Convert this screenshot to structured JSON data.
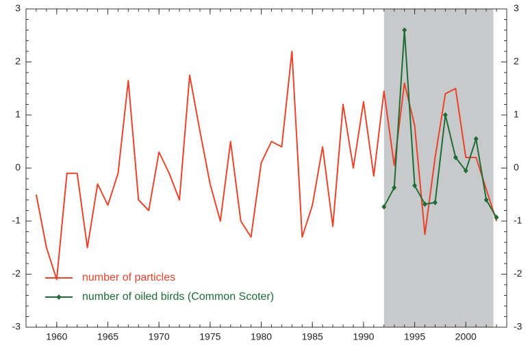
{
  "chart_data": {
    "type": "line",
    "xlim": [
      1957,
      2004
    ],
    "xticks": [
      1960,
      1965,
      1970,
      1975,
      1980,
      1985,
      1990,
      1995,
      2000
    ],
    "ylim": [
      -3,
      3
    ],
    "yticks": [
      -3,
      -2,
      -1,
      0,
      1,
      2,
      3
    ],
    "y2lim": [
      -3,
      3
    ],
    "y2ticks": [
      -3,
      -2,
      -1,
      0,
      1,
      2,
      3
    ],
    "highlight": {
      "from": 1992,
      "to": 2002.7,
      "color": "#c8c9cb"
    },
    "series": [
      {
        "name": "number of particles",
        "color": "#e8432a",
        "marker": false,
        "x": [
          1958,
          1959,
          1960,
          1961,
          1962,
          1963,
          1964,
          1965,
          1966,
          1967,
          1968,
          1969,
          1970,
          1971,
          1972,
          1973,
          1974,
          1975,
          1976,
          1977,
          1978,
          1979,
          1980,
          1981,
          1982,
          1983,
          1984,
          1985,
          1986,
          1987,
          1988,
          1989,
          1990,
          1991,
          1992,
          1993,
          1994,
          1995,
          1996,
          1997,
          1998,
          1999,
          2000,
          2001,
          2002,
          2003
        ],
        "values": [
          -0.5,
          -1.5,
          -2.1,
          -0.1,
          -0.1,
          -1.5,
          -0.3,
          -0.7,
          -0.1,
          1.65,
          -0.6,
          -0.8,
          0.3,
          -0.1,
          -0.6,
          1.75,
          0.7,
          -0.3,
          -1.0,
          0.5,
          -1.0,
          -1.3,
          0.1,
          0.5,
          0.4,
          2.2,
          -1.3,
          -0.7,
          0.4,
          -1.1,
          1.2,
          0.0,
          1.25,
          -0.15,
          1.45,
          0.05,
          1.6,
          0.8,
          -1.25,
          0.2,
          1.4,
          1.5,
          0.2,
          0.2,
          -0.4,
          -1.0
        ]
      },
      {
        "name": "number of oiled birds (Common Scoter)",
        "color": "#1e6b35",
        "marker": true,
        "x": [
          1992,
          1993,
          1994,
          1995,
          1996,
          1997,
          1998,
          1999,
          2000,
          2001,
          2002,
          2003
        ],
        "values": [
          -0.73,
          -0.37,
          2.6,
          -0.33,
          -0.68,
          -0.65,
          1.0,
          0.2,
          -0.05,
          0.55,
          -0.6,
          -0.93
        ]
      }
    ]
  }
}
